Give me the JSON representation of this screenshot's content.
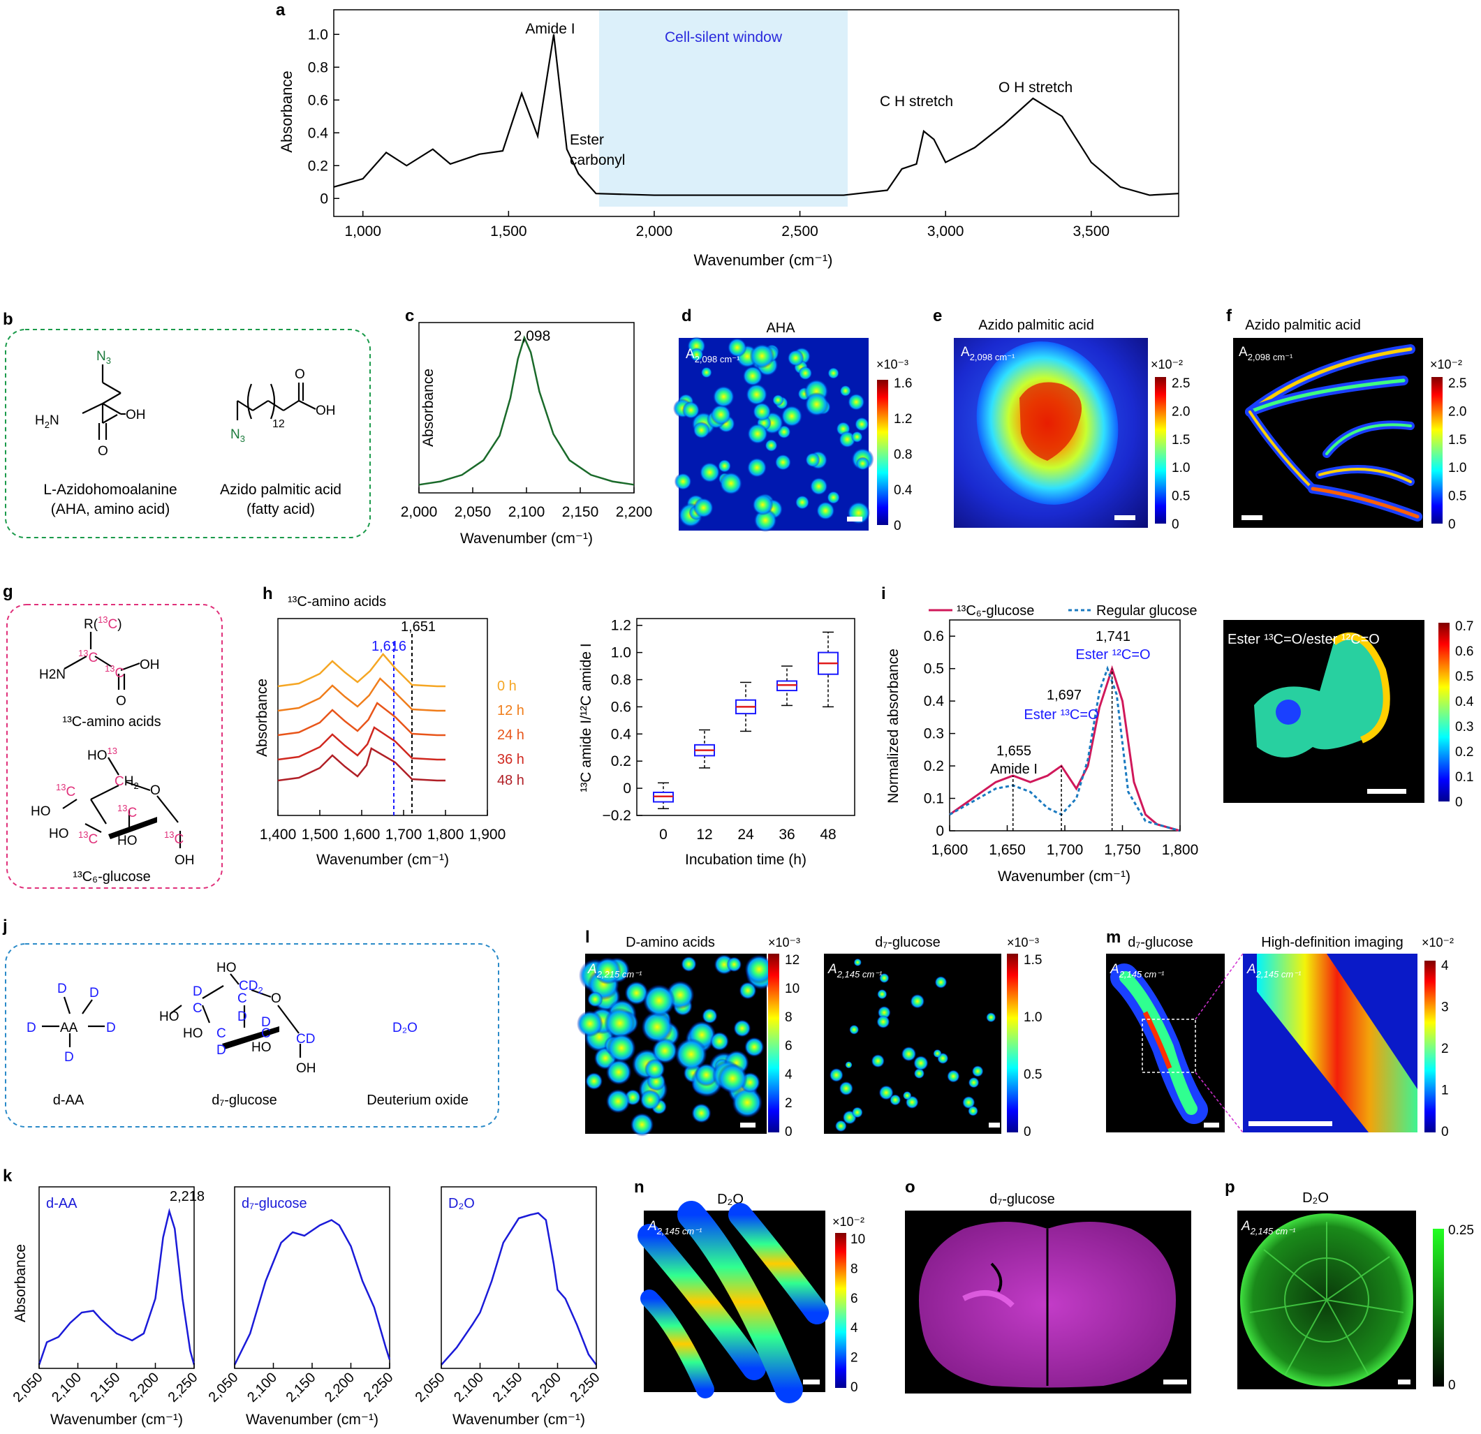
{
  "panels": {
    "a": {
      "letter": "a",
      "ylabel": "Absorbance",
      "xlabel": "Wavenumber (cm⁻¹)",
      "window_label": "Cell-silent window",
      "ann": {
        "amide": "Amide I",
        "ester1": "Ester",
        "ester2": "carbonyl",
        "ch": "C  H stretch",
        "oh": "O  H stretch"
      }
    },
    "b": {
      "letter": "b",
      "aha_name": "L-Azidohomoalanine",
      "aha_sub": "(AHA, amino acid)",
      "apa_name": "Azido palmitic acid",
      "apa_sub": "(fatty acid)"
    },
    "c": {
      "letter": "c",
      "ylabel": "Absorbance",
      "xlabel": "Wavenumber (cm⁻¹)",
      "peak": "2,098"
    },
    "d": {
      "letter": "d",
      "title": "AHA",
      "scale": "×10⁻³",
      "ticks": [
        "1.6",
        "1.2",
        "0.8",
        "0.4",
        "0"
      ]
    },
    "e": {
      "letter": "e",
      "title": "Azido palmitic acid",
      "scale": "×10⁻²",
      "ticks": [
        "2.5",
        "2.0",
        "1.5",
        "1.0",
        "0.5",
        "0"
      ]
    },
    "f": {
      "letter": "f",
      "title": "Azido palmitic acid",
      "scale": "×10⁻²",
      "ticks": [
        "2.5",
        "2.0",
        "1.5",
        "1.0",
        "0.5",
        "0"
      ]
    },
    "g": {
      "letter": "g",
      "aa_label": "¹³C-amino acids",
      "glc_label": "¹³C₆-glucose"
    },
    "h": {
      "letter": "h",
      "title": "¹³C-amino acids",
      "ylabel": "Absorbance",
      "xlabel": "Wavenumber (cm⁻¹)",
      "peak_13": "1,616",
      "peak_12": "1,651",
      "times": [
        "0 h",
        "12 h",
        "24 h",
        "36 h",
        "48 h"
      ],
      "box_xlabel": "Incubation time (h)",
      "box_ylabel": "¹³C amide I/¹²C amide I"
    },
    "i": {
      "letter": "i",
      "ylabel": "Normalized absorbance",
      "xlabel": "Wavenumber (cm⁻¹)",
      "legend_13": "¹³C₆-glucose",
      "legend_reg": "Regular glucose",
      "ann": {
        "p1741": "1,741",
        "e12": "Ester ¹²C=O",
        "p1697": "1,697",
        "e13": "Ester ¹³C=O",
        "p1655": "1,655",
        "amide": "Amide I"
      },
      "map_title": "Ester ¹³C=O/ester ¹²C=O",
      "map_ticks": [
        "0.7",
        "0.6",
        "0.5",
        "0.4",
        "0.3",
        "0.2",
        "0.1",
        "0"
      ]
    },
    "j": {
      "letter": "j",
      "daa": "d-AA",
      "d7": "d₇-glucose",
      "d2o_name": "Deuterium oxide",
      "d2o": "D₂O"
    },
    "k": {
      "letter": "k",
      "ylabel": "Absorbance",
      "xlabel": "Wavenumber (cm⁻¹)",
      "labels": [
        "d-AA",
        "d₇-glucose",
        "D₂O"
      ],
      "peak": "2,218"
    },
    "l": {
      "letter": "l",
      "title1": "D-amino acids",
      "title2": "d₇-glucose",
      "scale": "×10⁻³",
      "ticks1": [
        "12",
        "10",
        "8",
        "6",
        "4",
        "2",
        "0"
      ],
      "ticks2": [
        "1.5",
        "1.0",
        "0.5",
        "0"
      ]
    },
    "m": {
      "letter": "m",
      "title1": "d₇-glucose",
      "title2": "High-definition imaging",
      "scale": "×10⁻²",
      "ticks": [
        "4",
        "3",
        "2",
        "1",
        "0"
      ]
    },
    "n": {
      "letter": "n",
      "title": "D₂O",
      "scale": "×10⁻²",
      "ticks": [
        "10",
        "8",
        "6",
        "4",
        "2",
        "0"
      ]
    },
    "o": {
      "letter": "o",
      "title": "d₇-glucose"
    },
    "p": {
      "letter": "p",
      "title": "D₂O",
      "ticks": [
        "0.25",
        "0"
      ]
    }
  },
  "map_labels": {
    "a2098": "A",
    "sub2098": "2,098 cm⁻¹",
    "sub2215": "2,215 cm⁻¹",
    "sub2145": "2,145 cm⁻¹"
  },
  "chart_data": [
    {
      "panel": "a",
      "type": "line",
      "x": [
        900,
        1000,
        1080,
        1150,
        1240,
        1300,
        1400,
        1480,
        1545,
        1600,
        1655,
        1700,
        1740,
        1800,
        2000,
        2500,
        2650,
        2800,
        2850,
        2900,
        2925,
        2960,
        3000,
        3100,
        3200,
        3300,
        3400,
        3500,
        3600,
        3700,
        3800
      ],
      "y": [
        0.07,
        0.12,
        0.28,
        0.2,
        0.3,
        0.21,
        0.27,
        0.29,
        0.64,
        0.38,
        1.0,
        0.3,
        0.15,
        0.03,
        0.02,
        0.02,
        0.02,
        0.05,
        0.18,
        0.21,
        0.41,
        0.36,
        0.22,
        0.31,
        0.45,
        0.61,
        0.5,
        0.22,
        0.07,
        0.02,
        0.03
      ],
      "xticks": [
        "1,000",
        "1,500",
        "2,000",
        "2,500",
        "3,000",
        "3,500"
      ],
      "yticks": [
        "0",
        "0.2",
        "0.4",
        "0.6",
        "0.8",
        "1.0"
      ],
      "xlim": [
        900,
        3800
      ],
      "ylim": [
        -0.05,
        1.15
      ]
    },
    {
      "panel": "c",
      "type": "line",
      "x": [
        2000,
        2020,
        2040,
        2060,
        2075,
        2085,
        2092,
        2098,
        2104,
        2112,
        2125,
        2140,
        2160,
        2180,
        2200
      ],
      "y": [
        0.05,
        0.07,
        0.11,
        0.2,
        0.35,
        0.58,
        0.82,
        0.95,
        0.86,
        0.62,
        0.36,
        0.2,
        0.11,
        0.07,
        0.05
      ],
      "xticks": [
        "2,000",
        "2,050",
        "2,100",
        "2,150",
        "2,200"
      ],
      "xlim": [
        2000,
        2200
      ]
    },
    {
      "panel": "h",
      "type": "line",
      "times": [
        "0 h",
        "12 h",
        "24 h",
        "36 h",
        "48 h"
      ],
      "xticks": [
        "1,400",
        "1,500",
        "1,600",
        "1,700",
        "1,800",
        "1,900"
      ],
      "xlim": [
        1400,
        1900
      ]
    },
    {
      "panel": "h-box",
      "type": "box",
      "categories": [
        "0",
        "12",
        "24",
        "36",
        "48"
      ],
      "boxes": [
        {
          "min": -0.15,
          "q1": -0.1,
          "med": -0.06,
          "q3": -0.03,
          "max": 0.04
        },
        {
          "min": 0.15,
          "q1": 0.24,
          "med": 0.28,
          "q3": 0.32,
          "max": 0.43
        },
        {
          "min": 0.42,
          "q1": 0.55,
          "med": 0.6,
          "q3": 0.65,
          "max": 0.78
        },
        {
          "min": 0.61,
          "q1": 0.72,
          "med": 0.76,
          "q3": 0.79,
          "max": 0.9
        },
        {
          "min": 0.6,
          "q1": 0.84,
          "med": 0.92,
          "q3": 1.0,
          "max": 1.15
        }
      ],
      "yticks": [
        "−0.2",
        "0",
        "0.2",
        "0.4",
        "0.6",
        "0.8",
        "1.0",
        "1.2"
      ],
      "ylim": [
        -0.2,
        1.25
      ]
    },
    {
      "panel": "i",
      "type": "line",
      "series": [
        {
          "name": "¹³C₆-glucose",
          "x": [
            1600,
            1620,
            1640,
            1655,
            1670,
            1685,
            1697,
            1710,
            1720,
            1730,
            1741,
            1750,
            1760,
            1770,
            1780,
            1800
          ],
          "y": [
            0.05,
            0.1,
            0.15,
            0.17,
            0.15,
            0.17,
            0.2,
            0.13,
            0.2,
            0.38,
            0.5,
            0.4,
            0.15,
            0.05,
            0.02,
            0.0
          ]
        },
        {
          "name": "Regular glucose",
          "x": [
            1600,
            1620,
            1640,
            1655,
            1670,
            1685,
            1697,
            1710,
            1720,
            1730,
            1737,
            1745,
            1755,
            1770,
            1800
          ],
          "y": [
            0.05,
            0.09,
            0.13,
            0.14,
            0.12,
            0.07,
            0.05,
            0.1,
            0.22,
            0.43,
            0.5,
            0.42,
            0.12,
            0.03,
            0.0
          ]
        }
      ],
      "xticks": [
        "1,600",
        "1,650",
        "1,700",
        "1,750",
        "1,800"
      ],
      "yticks": [
        "0",
        "0.1",
        "0.2",
        "0.3",
        "0.4",
        "0.5",
        "0.6"
      ],
      "xlim": [
        1600,
        1800
      ],
      "ylim": [
        0,
        0.65
      ]
    },
    {
      "panel": "k",
      "type": "line",
      "xticks": [
        "2,050",
        "2,100",
        "2,150",
        "2,200",
        "2,250"
      ],
      "xlim": [
        2050,
        2250
      ],
      "series": [
        {
          "name": "d-AA",
          "x": [
            2050,
            2060,
            2075,
            2090,
            2105,
            2120,
            2130,
            2150,
            2170,
            2185,
            2200,
            2210,
            2218,
            2225,
            2235,
            2245,
            2250
          ],
          "y": [
            0.02,
            0.15,
            0.18,
            0.26,
            0.32,
            0.33,
            0.28,
            0.2,
            0.16,
            0.2,
            0.4,
            0.75,
            0.9,
            0.8,
            0.4,
            0.1,
            0.02
          ]
        },
        {
          "name": "d₇-glucose",
          "x": [
            2050,
            2070,
            2090,
            2110,
            2125,
            2140,
            2160,
            2175,
            2185,
            2200,
            2215,
            2230,
            2245,
            2250
          ],
          "y": [
            0.02,
            0.2,
            0.5,
            0.72,
            0.78,
            0.76,
            0.82,
            0.85,
            0.82,
            0.7,
            0.5,
            0.35,
            0.12,
            0.05
          ]
        },
        {
          "name": "D₂O",
          "x": [
            2050,
            2070,
            2090,
            2100,
            2115,
            2130,
            2150,
            2165,
            2175,
            2185,
            2195,
            2200,
            2210,
            2225,
            2240,
            2250
          ],
          "y": [
            0.02,
            0.12,
            0.25,
            0.32,
            0.5,
            0.72,
            0.86,
            0.88,
            0.89,
            0.85,
            0.6,
            0.45,
            0.4,
            0.25,
            0.08,
            0.02
          ]
        }
      ]
    }
  ]
}
